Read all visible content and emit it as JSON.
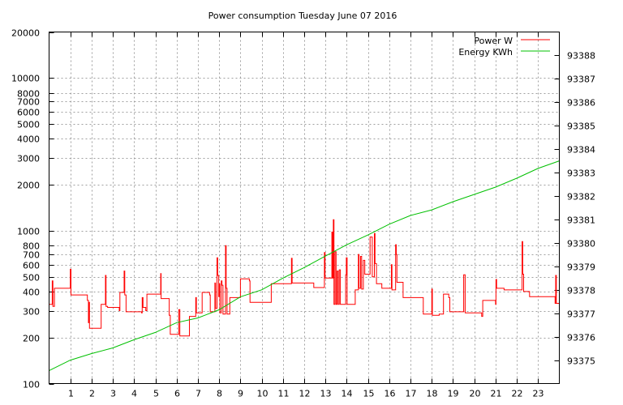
{
  "chart_data": {
    "type": "line",
    "title": "Power consumption Tuesday June 07 2016",
    "xlabel": "",
    "ylabel": "",
    "xlim": [
      0,
      24
    ],
    "ylim": [
      100,
      20000
    ],
    "yscale": "log",
    "y2lim": [
      93374,
      93389
    ],
    "grid": true,
    "legend_position": "top-right",
    "x_ticks": [
      1,
      2,
      3,
      4,
      5,
      6,
      7,
      8,
      9,
      10,
      11,
      12,
      13,
      14,
      15,
      16,
      17,
      18,
      19,
      20,
      21,
      22,
      23
    ],
    "y_ticks": [
      100,
      200,
      300,
      400,
      500,
      600,
      700,
      800,
      1000,
      2000,
      3000,
      4000,
      5000,
      6000,
      7000,
      8000,
      10000,
      20000
    ],
    "y2_ticks": [
      93375,
      93376,
      93377,
      93378,
      93379,
      93380,
      93381,
      93382,
      93383,
      93384,
      93385,
      93386,
      93387,
      93388
    ],
    "series": [
      {
        "name": "Power W",
        "color": "#ff0000",
        "axis": "y",
        "style": "steps",
        "points": [
          [
            0,
            330
          ],
          [
            0.15,
            470
          ],
          [
            0.18,
            320
          ],
          [
            0.25,
            420
          ],
          [
            1.0,
            560
          ],
          [
            1.03,
            380
          ],
          [
            1.8,
            350
          ],
          [
            1.85,
            250
          ],
          [
            1.87,
            340
          ],
          [
            1.9,
            230
          ],
          [
            2.45,
            330
          ],
          [
            2.65,
            510
          ],
          [
            2.68,
            320
          ],
          [
            2.75,
            315
          ],
          [
            3.3,
            300
          ],
          [
            3.33,
            395
          ],
          [
            3.53,
            545
          ],
          [
            3.56,
            380
          ],
          [
            3.62,
            295
          ],
          [
            4.35,
            290
          ],
          [
            4.38,
            365
          ],
          [
            4.42,
            315
          ],
          [
            4.55,
            300
          ],
          [
            4.6,
            385
          ],
          [
            5.25,
            525
          ],
          [
            5.27,
            360
          ],
          [
            5.65,
            280
          ],
          [
            5.7,
            210
          ],
          [
            6.1,
            305
          ],
          [
            6.15,
            205
          ],
          [
            6.6,
            275
          ],
          [
            6.9,
            365
          ],
          [
            6.93,
            290
          ],
          [
            7.2,
            395
          ],
          [
            7.55,
            380
          ],
          [
            7.58,
            295
          ],
          [
            7.8,
            455
          ],
          [
            7.83,
            310
          ],
          [
            7.9,
            665
          ],
          [
            7.93,
            510
          ],
          [
            7.98,
            370
          ],
          [
            8.0,
            450
          ],
          [
            8.03,
            290
          ],
          [
            8.1,
            470
          ],
          [
            8.13,
            440
          ],
          [
            8.18,
            285
          ],
          [
            8.3,
            800
          ],
          [
            8.33,
            420
          ],
          [
            8.37,
            285
          ],
          [
            8.5,
            365
          ],
          [
            9.0,
            485
          ],
          [
            9.42,
            470
          ],
          [
            9.45,
            340
          ],
          [
            10.45,
            450
          ],
          [
            11.4,
            660
          ],
          [
            11.43,
            455
          ],
          [
            12.45,
            425
          ],
          [
            12.95,
            720
          ],
          [
            12.98,
            490
          ],
          [
            13.3,
            980
          ],
          [
            13.33,
            490
          ],
          [
            13.37,
            1180
          ],
          [
            13.4,
            330
          ],
          [
            13.45,
            730
          ],
          [
            13.5,
            330
          ],
          [
            13.55,
            545
          ],
          [
            13.6,
            330
          ],
          [
            13.65,
            555
          ],
          [
            13.7,
            330
          ],
          [
            13.8,
            330
          ],
          [
            13.95,
            515
          ],
          [
            13.98,
            665
          ],
          [
            14.02,
            330
          ],
          [
            14.4,
            410
          ],
          [
            14.55,
            700
          ],
          [
            14.58,
            420
          ],
          [
            14.65,
            680
          ],
          [
            14.7,
            415
          ],
          [
            14.78,
            640
          ],
          [
            14.85,
            520
          ],
          [
            15.1,
            910
          ],
          [
            15.2,
            500
          ],
          [
            15.3,
            960
          ],
          [
            15.33,
            610
          ],
          [
            15.4,
            450
          ],
          [
            15.65,
            420
          ],
          [
            16.1,
            600
          ],
          [
            16.13,
            410
          ],
          [
            16.3,
            810
          ],
          [
            16.33,
            700
          ],
          [
            16.36,
            460
          ],
          [
            16.65,
            365
          ],
          [
            17.6,
            285
          ],
          [
            18.0,
            415
          ],
          [
            18.03,
            280
          ],
          [
            18.35,
            285
          ],
          [
            18.55,
            385
          ],
          [
            18.8,
            365
          ],
          [
            18.85,
            295
          ],
          [
            19.5,
            515
          ],
          [
            19.57,
            290
          ],
          [
            20.35,
            275
          ],
          [
            20.4,
            350
          ],
          [
            21.0,
            330
          ],
          [
            21.02,
            480
          ],
          [
            21.05,
            420
          ],
          [
            21.4,
            410
          ],
          [
            22.25,
            850
          ],
          [
            22.28,
            520
          ],
          [
            22.32,
            400
          ],
          [
            22.6,
            370
          ],
          [
            23.8,
            335
          ],
          [
            23.83,
            510
          ],
          [
            23.86,
            335
          ],
          [
            24,
            335
          ]
        ]
      },
      {
        "name": "Energy KWh",
        "color": "#00c000",
        "axis": "y2",
        "style": "line",
        "points": [
          [
            0,
            93374.55
          ],
          [
            1,
            93375.0
          ],
          [
            2,
            93375.28
          ],
          [
            3,
            93375.52
          ],
          [
            4,
            93375.87
          ],
          [
            5,
            93376.18
          ],
          [
            6,
            93376.6
          ],
          [
            7,
            93376.8
          ],
          [
            8,
            93377.15
          ],
          [
            9,
            93377.7
          ],
          [
            10,
            93378.0
          ],
          [
            11,
            93378.5
          ],
          [
            12,
            93378.95
          ],
          [
            13,
            93379.44
          ],
          [
            14,
            93379.92
          ],
          [
            15,
            93380.34
          ],
          [
            16,
            93380.8
          ],
          [
            17,
            93381.17
          ],
          [
            18,
            93381.41
          ],
          [
            19,
            93381.76
          ],
          [
            20,
            93382.07
          ],
          [
            21,
            93382.38
          ],
          [
            22,
            93382.76
          ],
          [
            23,
            93383.18
          ],
          [
            24,
            93383.5
          ]
        ]
      }
    ]
  }
}
